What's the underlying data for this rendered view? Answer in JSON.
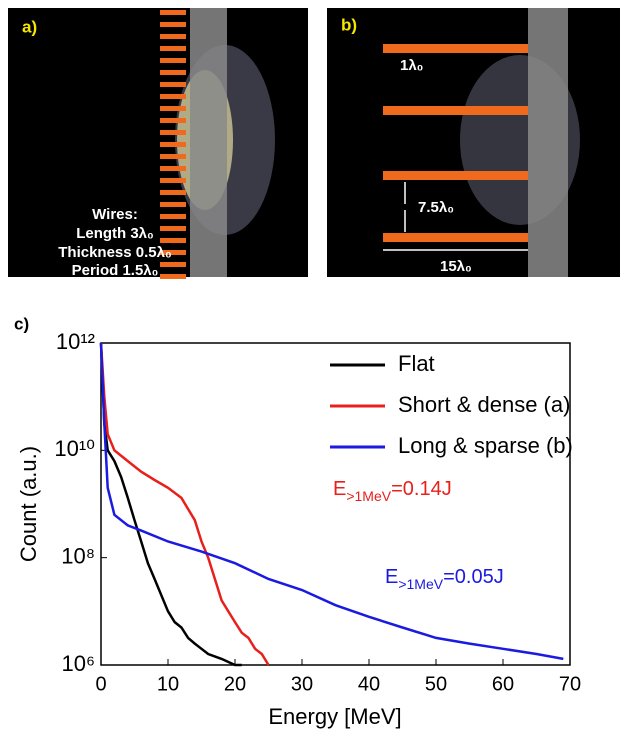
{
  "panels": [
    {
      "label": "a)",
      "text": [
        "Wires:",
        "Length 3λ₀",
        "Thickness 0.5λ₀",
        "Period 1.5λ₀"
      ]
    },
    {
      "label": "b)",
      "text": [
        "1λ₀",
        "7.5λ₀",
        "15λ₀"
      ]
    }
  ],
  "chart_data": {
    "type": "line",
    "label": "c)",
    "xlabel": "Energy [MeV]",
    "ylabel": "Count (a.u.)",
    "xlim": [
      0,
      70
    ],
    "xticks": [
      0,
      10,
      20,
      30,
      40,
      50,
      60,
      70
    ],
    "ylim": [
      1000000.0,
      1000000000000.0
    ],
    "yscale": "log",
    "yticks": [
      {
        "value": 1000000.0,
        "label": "10⁶"
      },
      {
        "value": 100000000.0,
        "label": "10⁸"
      },
      {
        "value": 10000000000.0,
        "label": "10¹⁰"
      },
      {
        "value": 1000000000000.0,
        "label": "10¹²"
      }
    ],
    "legend": "upper right",
    "series": [
      {
        "name": "Flat",
        "color": "#000000",
        "x": [
          0,
          0.5,
          1,
          2,
          3,
          4,
          5,
          6,
          7,
          8,
          9,
          10,
          11,
          12,
          13,
          14,
          15,
          16,
          18,
          20,
          21
        ],
        "values": [
          1000000000000.0,
          32000000000.0,
          10000000000.0,
          6300000000.0,
          3200000000.0,
          1300000000.0,
          500000000.0,
          200000000.0,
          79000000.0,
          40000000.0,
          20000000.0,
          10000000.0,
          6300000.0,
          5000000.0,
          3200000.0,
          2500000.0,
          2000000.0,
          1600000.0,
          1300000.0,
          1000000.0,
          1000000.0
        ]
      },
      {
        "name": "Short & dense (a)",
        "color": "#e8201c",
        "x": [
          0,
          0.5,
          1,
          2,
          4,
          6,
          8,
          10,
          12,
          14,
          15,
          16,
          17,
          18,
          19,
          20,
          21,
          22,
          23,
          24,
          25
        ],
        "values": [
          1000000000000.0,
          100000000000.0,
          20000000000.0,
          10000000000.0,
          6300000000.0,
          4000000000.0,
          2800000000.0,
          2000000000.0,
          1300000000.0,
          500000000.0,
          200000000.0,
          100000000.0,
          40000000.0,
          16000000.0,
          10000000.0,
          6300000.0,
          4000000.0,
          3200000.0,
          2000000.0,
          1600000.0,
          1000000.0
        ]
      },
      {
        "name": "Long & sparse (b)",
        "color": "#1a1ae0",
        "x": [
          0,
          0.5,
          1,
          2,
          4,
          6,
          10,
          15,
          20,
          25,
          30,
          35,
          40,
          45,
          50,
          55,
          60,
          65,
          69
        ],
        "values": [
          1000000000000.0,
          32000000000.0,
          2000000000.0,
          630000000.0,
          400000000.0,
          320000000.0,
          200000000.0,
          130000000.0,
          79000000.0,
          40000000.0,
          25000000.0,
          13000000.0,
          7900000.0,
          5000000.0,
          3200000.0,
          2500000.0,
          2000000.0,
          1600000.0,
          1300000.0
        ]
      }
    ],
    "annotations": [
      {
        "base": "E",
        "sub": ">1MeV",
        "rest": "=0.14J",
        "color": "#e8201c"
      },
      {
        "base": "E",
        "sub": ">1MeV",
        "rest": "=0.05J",
        "color": "#1a1ae0"
      }
    ]
  }
}
